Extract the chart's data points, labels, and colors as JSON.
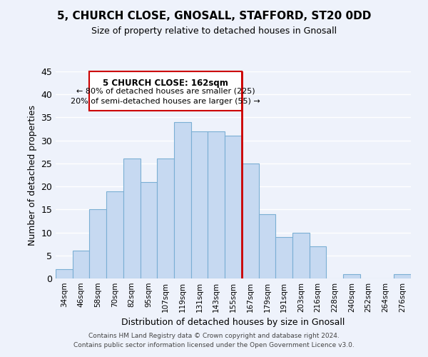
{
  "title": "5, CHURCH CLOSE, GNOSALL, STAFFORD, ST20 0DD",
  "subtitle": "Size of property relative to detached houses in Gnosall",
  "xlabel": "Distribution of detached houses by size in Gnosall",
  "ylabel": "Number of detached properties",
  "bin_labels": [
    "34sqm",
    "46sqm",
    "58sqm",
    "70sqm",
    "82sqm",
    "95sqm",
    "107sqm",
    "119sqm",
    "131sqm",
    "143sqm",
    "155sqm",
    "167sqm",
    "179sqm",
    "191sqm",
    "203sqm",
    "216sqm",
    "228sqm",
    "240sqm",
    "252sqm",
    "264sqm",
    "276sqm"
  ],
  "bar_heights": [
    2,
    6,
    15,
    19,
    26,
    21,
    26,
    34,
    32,
    32,
    31,
    25,
    14,
    9,
    10,
    7,
    0,
    1,
    0,
    0,
    1
  ],
  "bar_color": "#c6d9f1",
  "bar_edge_color": "#7bafd4",
  "vline_x": 10.5,
  "vline_color": "#cc0000",
  "annotation_title": "5 CHURCH CLOSE: 162sqm",
  "annotation_line1": "← 80% of detached houses are smaller (225)",
  "annotation_line2": "20% of semi-detached houses are larger (55) →",
  "annotation_box_edge": "#cc0000",
  "ylim": [
    0,
    45
  ],
  "yticks": [
    0,
    5,
    10,
    15,
    20,
    25,
    30,
    35,
    40,
    45
  ],
  "footer_line1": "Contains HM Land Registry data © Crown copyright and database right 2024.",
  "footer_line2": "Contains public sector information licensed under the Open Government Licence v3.0.",
  "bg_color": "#eef2fb",
  "grid_color": "#ffffff"
}
